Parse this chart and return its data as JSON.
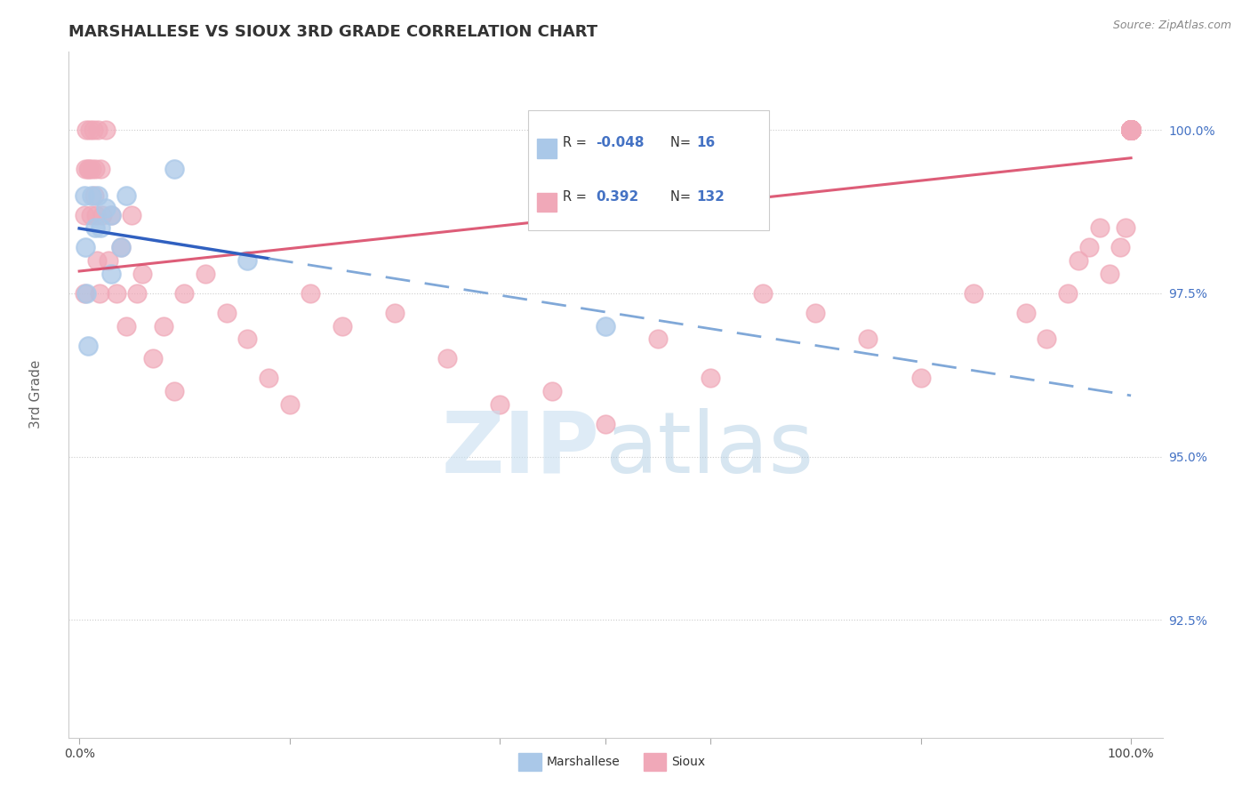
{
  "title": "MARSHALLESE VS SIOUX 3RD GRADE CORRELATION CHART",
  "source": "Source: ZipAtlas.com",
  "ylabel": "3rd Grade",
  "ytick_labels": [
    "100.0%",
    "97.5%",
    "95.0%",
    "92.5%"
  ],
  "ytick_values": [
    1.0,
    0.975,
    0.95,
    0.925
  ],
  "xlim": [
    -0.01,
    1.03
  ],
  "ylim": [
    0.907,
    1.012
  ],
  "marshallese_R": -0.048,
  "marshallese_N": 16,
  "sioux_R": 0.392,
  "sioux_N": 132,
  "marshallese_color": "#aac8e8",
  "sioux_color": "#f0a8b8",
  "marshallese_line_color": "#3060c0",
  "marshallese_dash_color": "#80a8d8",
  "sioux_line_color": "#d84060",
  "background_color": "#ffffff",
  "grid_color": "#cccccc",
  "border_color": "#cccccc",
  "ytick_color": "#4472c4",
  "title_color": "#333333",
  "source_color": "#888888",
  "watermark_zip_color": "#c8dff0",
  "watermark_atlas_color": "#a8c8e0",
  "legend_border_color": "#cccccc",
  "legend_text_color": "#333333",
  "legend_value_color": "#4472c4",
  "marshallese_x": [
    0.005,
    0.006,
    0.007,
    0.008,
    0.012,
    0.015,
    0.018,
    0.02,
    0.025,
    0.03,
    0.03,
    0.04,
    0.045,
    0.09,
    0.16,
    0.5
  ],
  "marshallese_y": [
    0.99,
    0.982,
    0.975,
    0.967,
    0.99,
    0.985,
    0.99,
    0.985,
    0.988,
    0.987,
    0.978,
    0.982,
    0.99,
    0.994,
    0.98,
    0.97
  ],
  "sioux_x": [
    0.005,
    0.005,
    0.006,
    0.007,
    0.008,
    0.009,
    0.01,
    0.011,
    0.012,
    0.013,
    0.014,
    0.015,
    0.016,
    0.017,
    0.018,
    0.019,
    0.02,
    0.022,
    0.025,
    0.028,
    0.03,
    0.035,
    0.04,
    0.045,
    0.05,
    0.055,
    0.06,
    0.07,
    0.08,
    0.09,
    0.1,
    0.12,
    0.14,
    0.16,
    0.18,
    0.2,
    0.22,
    0.25,
    0.3,
    0.35,
    0.4,
    0.45,
    0.5,
    0.55,
    0.6,
    0.65,
    0.7,
    0.75,
    0.8,
    0.85,
    0.9,
    0.92,
    0.94,
    0.95,
    0.96,
    0.97,
    0.98,
    0.99,
    0.995,
    1.0,
    1.0,
    1.0,
    1.0,
    1.0,
    1.0,
    1.0,
    1.0,
    1.0,
    1.0,
    1.0,
    1.0,
    1.0,
    1.0,
    1.0,
    1.0,
    1.0,
    1.0,
    1.0,
    1.0,
    1.0,
    1.0,
    1.0,
    1.0,
    1.0,
    1.0,
    1.0,
    1.0,
    1.0,
    1.0,
    1.0,
    1.0,
    1.0,
    1.0,
    1.0,
    1.0,
    1.0,
    1.0,
    1.0,
    1.0,
    1.0,
    1.0,
    1.0,
    1.0,
    1.0,
    1.0,
    1.0,
    1.0,
    1.0,
    1.0,
    1.0,
    1.0,
    1.0,
    1.0,
    1.0,
    1.0,
    1.0,
    1.0,
    1.0,
    1.0,
    1.0,
    1.0,
    1.0,
    1.0,
    1.0,
    1.0,
    1.0,
    1.0,
    1.0,
    1.0,
    1.0,
    1.0,
    1.0
  ],
  "sioux_y": [
    0.987,
    0.975,
    0.994,
    1.0,
    0.994,
    0.994,
    1.0,
    0.987,
    0.994,
    1.0,
    0.99,
    0.994,
    0.987,
    0.98,
    1.0,
    0.975,
    0.994,
    0.987,
    1.0,
    0.98,
    0.987,
    0.975,
    0.982,
    0.97,
    0.987,
    0.975,
    0.978,
    0.965,
    0.97,
    0.96,
    0.975,
    0.978,
    0.972,
    0.968,
    0.962,
    0.958,
    0.975,
    0.97,
    0.972,
    0.965,
    0.958,
    0.96,
    0.955,
    0.968,
    0.962,
    0.975,
    0.972,
    0.968,
    0.962,
    0.975,
    0.972,
    0.968,
    0.975,
    0.98,
    0.982,
    0.985,
    0.978,
    0.982,
    0.985,
    1.0,
    1.0,
    1.0,
    1.0,
    1.0,
    1.0,
    1.0,
    1.0,
    1.0,
    1.0,
    1.0,
    1.0,
    1.0,
    1.0,
    1.0,
    1.0,
    1.0,
    1.0,
    1.0,
    1.0,
    1.0,
    1.0,
    1.0,
    1.0,
    1.0,
    1.0,
    1.0,
    1.0,
    1.0,
    1.0,
    1.0,
    1.0,
    1.0,
    1.0,
    1.0,
    1.0,
    1.0,
    1.0,
    1.0,
    1.0,
    1.0,
    1.0,
    1.0,
    1.0,
    1.0,
    1.0,
    1.0,
    1.0,
    1.0,
    1.0,
    1.0,
    1.0,
    1.0,
    1.0,
    1.0,
    1.0,
    1.0,
    1.0,
    1.0,
    1.0,
    1.0,
    1.0,
    1.0,
    1.0,
    1.0,
    1.0,
    1.0,
    1.0,
    1.0,
    1.0,
    1.0,
    1.0,
    1.0
  ]
}
